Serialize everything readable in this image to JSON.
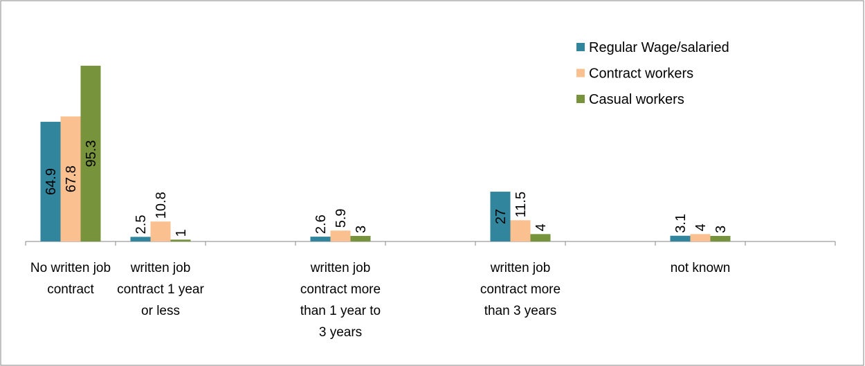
{
  "chart_data": {
    "type": "bar",
    "categories": [
      "No written job contract",
      "written job contract 1 year or less",
      null,
      "written job contract more than 1 year to 3 years",
      null,
      "written job contract more than 3 years",
      null,
      "not known",
      null
    ],
    "series": [
      {
        "name": "Regular Wage/salaried",
        "color": "#31859c",
        "values": [
          64.9,
          2.5,
          null,
          2.6,
          null,
          27,
          null,
          3.1,
          null
        ]
      },
      {
        "name": "Contract workers",
        "color": "#fac090",
        "values": [
          67.8,
          10.8,
          null,
          5.9,
          null,
          11.5,
          null,
          4,
          null
        ]
      },
      {
        "name": "Casual workers",
        "color": "#77933c",
        "values": [
          95.3,
          1,
          null,
          3,
          null,
          4,
          null,
          3,
          null
        ]
      }
    ],
    "ylim": [
      0,
      100
    ],
    "legend": "upper right"
  }
}
